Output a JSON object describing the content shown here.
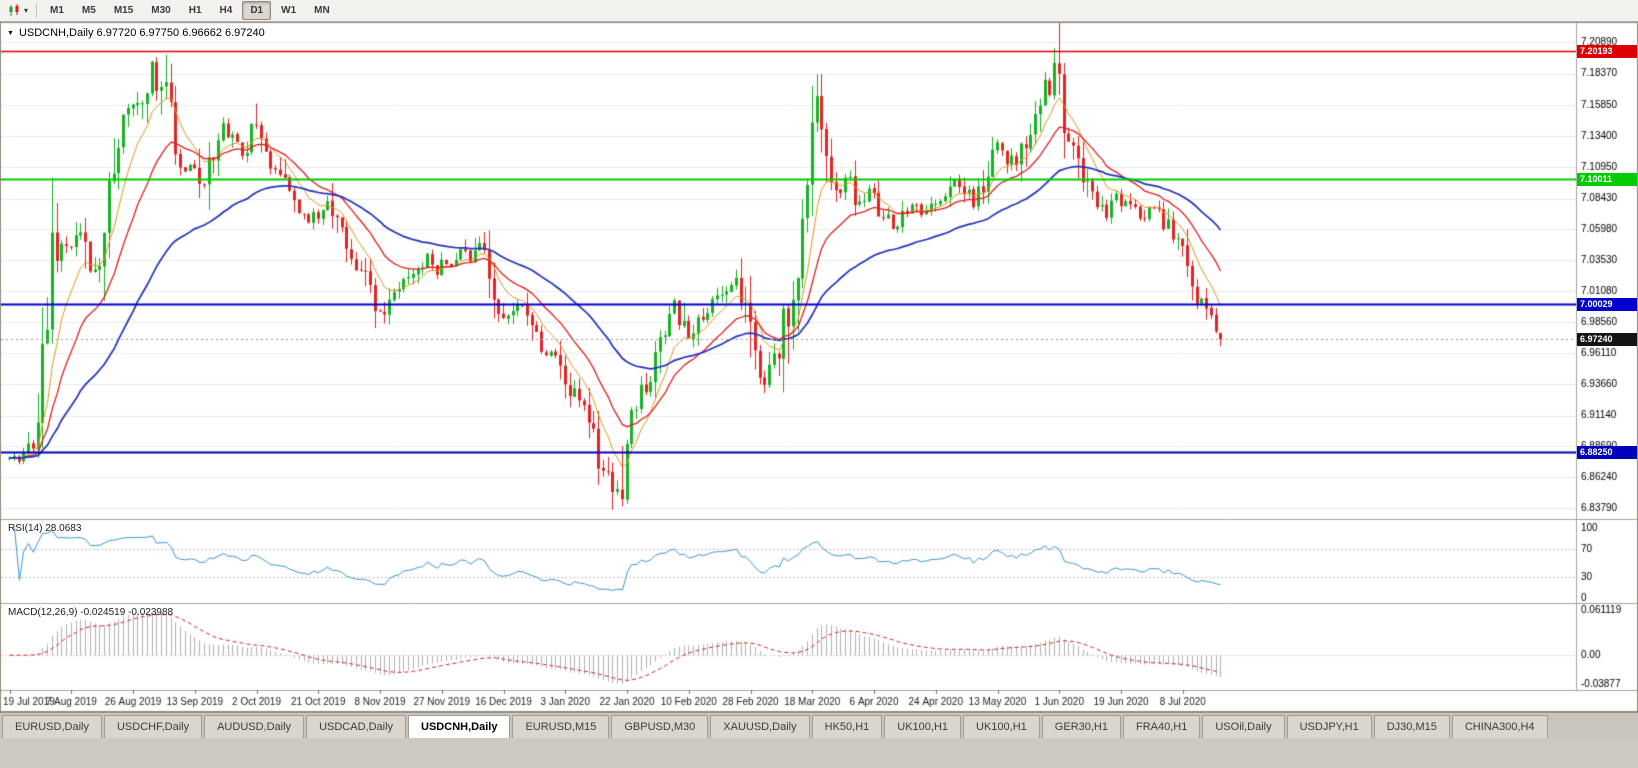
{
  "icons": {
    "collapse_arrow": "▼",
    "dropdown_caret": "▾"
  },
  "toolbar": {
    "timeframes": [
      "M1",
      "M5",
      "M15",
      "M30",
      "H1",
      "H4",
      "D1",
      "W1",
      "MN"
    ],
    "active_timeframe": "D1"
  },
  "chart_data": {
    "type": "candlestick",
    "symbol": "USDCNH",
    "period": "Daily",
    "title_text": "USDCNH,Daily 6.97720 6.97750 6.96662 6.97240",
    "ohlc": {
      "open": 6.9772,
      "high": 6.9775,
      "low": 6.96662,
      "close": 6.9724
    },
    "bars": 256,
    "bars_per_label": 13,
    "date_labels": [
      "19 Jul 2019",
      "7 Aug 2019",
      "26 Aug 2019",
      "13 Sep 2019",
      "2 Oct 2019",
      "21 Oct 2019",
      "8 Nov 2019",
      "27 Nov 2019",
      "16 Dec 2019",
      "3 Jan 2020",
      "22 Jan 2020",
      "10 Feb 2020",
      "28 Feb 2020",
      "18 Mar 2020",
      "6 Apr 2020",
      "24 Apr 2020",
      "13 May 2020",
      "1 Jun 2020",
      "19 Jun 2020",
      "8 Jul 2020"
    ],
    "price_axis": {
      "ticks": [
        "7.20890",
        "7.18370",
        "7.15850",
        "7.13400",
        "7.10950",
        "7.08430",
        "7.05980",
        "7.03530",
        "7.01080",
        "6.98560",
        "6.96110",
        "6.93660",
        "6.91140",
        "6.88690",
        "6.86240",
        "6.83790"
      ],
      "min": 6.8379,
      "max": 7.2089
    },
    "anchors": [
      [
        0,
        6.879
      ],
      [
        2,
        6.877
      ],
      [
        4,
        6.881
      ],
      [
        6,
        6.902
      ],
      [
        8,
        6.965
      ],
      [
        9,
        7.018
      ],
      [
        11,
        7.052
      ],
      [
        13,
        7.044
      ],
      [
        15,
        7.061
      ],
      [
        17,
        7.026
      ],
      [
        19,
        7.048
      ],
      [
        21,
        7.088
      ],
      [
        23,
        7.138
      ],
      [
        25,
        7.154
      ],
      [
        27,
        7.162
      ],
      [
        29,
        7.178
      ],
      [
        30,
        7.192
      ],
      [
        31,
        7.183
      ],
      [
        33,
        7.158
      ],
      [
        35,
        7.114
      ],
      [
        37,
        7.104
      ],
      [
        39,
        7.112
      ],
      [
        41,
        7.092
      ],
      [
        43,
        7.119
      ],
      [
        45,
        7.141
      ],
      [
        47,
        7.129
      ],
      [
        49,
        7.119
      ],
      [
        51,
        7.146
      ],
      [
        53,
        7.124
      ],
      [
        55,
        7.109
      ],
      [
        57,
        7.099
      ],
      [
        59,
        7.084
      ],
      [
        61,
        7.071
      ],
      [
        63,
        7.067
      ],
      [
        65,
        7.072
      ],
      [
        67,
        7.078
      ],
      [
        69,
        7.059
      ],
      [
        71,
        7.041
      ],
      [
        73,
        7.031
      ],
      [
        75,
        7.019
      ],
      [
        77,
        6.999
      ],
      [
        78,
        6.992
      ],
      [
        80,
        7.002
      ],
      [
        82,
        7.013
      ],
      [
        84,
        7.022
      ],
      [
        86,
        7.031
      ],
      [
        88,
        7.039
      ],
      [
        90,
        7.028
      ],
      [
        91,
        7.039
      ],
      [
        93,
        7.031
      ],
      [
        95,
        7.043
      ],
      [
        97,
        7.032
      ],
      [
        99,
        7.046
      ],
      [
        101,
        7.021
      ],
      [
        103,
        7.002
      ],
      [
        104,
        6.986
      ],
      [
        106,
        6.993
      ],
      [
        108,
        7.001
      ],
      [
        110,
        6.989
      ],
      [
        112,
        6.971
      ],
      [
        114,
        6.961
      ],
      [
        116,
        6.959
      ],
      [
        117,
        6.941
      ],
      [
        119,
        6.929
      ],
      [
        121,
        6.917
      ],
      [
        123,
        6.899
      ],
      [
        125,
        6.871
      ],
      [
        127,
        6.856
      ],
      [
        128,
        6.846
      ],
      [
        129,
        6.869
      ],
      [
        130,
        6.899
      ],
      [
        132,
        6.927
      ],
      [
        134,
        6.941
      ],
      [
        136,
        6.964
      ],
      [
        138,
        6.987
      ],
      [
        140,
        7.001
      ],
      [
        142,
        6.981
      ],
      [
        143,
        6.971
      ],
      [
        145,
        6.984
      ],
      [
        147,
        6.996
      ],
      [
        149,
        7.006
      ],
      [
        151,
        7.016
      ],
      [
        153,
        7.023
      ],
      [
        155,
        6.997
      ],
      [
        156,
        6.971
      ],
      [
        158,
        6.937
      ],
      [
        160,
        6.949
      ],
      [
        162,
        6.963
      ],
      [
        164,
        7.001
      ],
      [
        166,
        7.046
      ],
      [
        168,
        7.096
      ],
      [
        169,
        7.121
      ],
      [
        170,
        7.161
      ],
      [
        171,
        7.144
      ],
      [
        173,
        7.109
      ],
      [
        175,
        7.091
      ],
      [
        177,
        7.101
      ],
      [
        179,
        7.081
      ],
      [
        181,
        7.089
      ],
      [
        182,
        7.091
      ],
      [
        184,
        7.071
      ],
      [
        186,
        7.061
      ],
      [
        188,
        7.071
      ],
      [
        190,
        7.081
      ],
      [
        192,
        7.071
      ],
      [
        194,
        7.077
      ],
      [
        195,
        7.081
      ],
      [
        197,
        7.089
      ],
      [
        199,
        7.099
      ],
      [
        201,
        7.091
      ],
      [
        203,
        7.081
      ],
      [
        205,
        7.099
      ],
      [
        207,
        7.119
      ],
      [
        208,
        7.127
      ],
      [
        210,
        7.117
      ],
      [
        212,
        7.111
      ],
      [
        214,
        7.129
      ],
      [
        216,
        7.149
      ],
      [
        218,
        7.167
      ],
      [
        220,
        7.192
      ],
      [
        221,
        7.161
      ],
      [
        223,
        7.131
      ],
      [
        225,
        7.117
      ],
      [
        227,
        7.091
      ],
      [
        229,
        7.081
      ],
      [
        231,
        7.071
      ],
      [
        233,
        7.087
      ],
      [
        234,
        7.081
      ],
      [
        236,
        7.077
      ],
      [
        238,
        7.069
      ],
      [
        240,
        7.077
      ],
      [
        242,
        7.071
      ],
      [
        244,
        7.061
      ],
      [
        246,
        7.051
      ],
      [
        247,
        7.031
      ],
      [
        249,
        7.011
      ],
      [
        251,
        7.001
      ],
      [
        253,
        6.991
      ],
      [
        255,
        6.9724
      ]
    ],
    "hlines": [
      {
        "price": 7.20193,
        "color": "#dd0000",
        "label": "7.20193",
        "width": 1.5
      },
      {
        "price": 7.10011,
        "color": "#00cc00",
        "label": "7.10011",
        "width": 2
      },
      {
        "price": 7.00029,
        "color": "#0000cc",
        "label": "7.00029",
        "width": 2
      },
      {
        "price": 6.8825,
        "color": "#0000bb",
        "label": "6.88250",
        "width": 2
      }
    ],
    "current_price": {
      "value": 6.9724,
      "label": "6.97240",
      "box_color": "#151515"
    },
    "moving_averages": [
      {
        "period": 8,
        "color": "#dd9922",
        "width": 1
      },
      {
        "period": 18,
        "color": "#e02020",
        "width": 1.3
      },
      {
        "period": 45,
        "color": "#2233bb",
        "width": 1.7
      }
    ],
    "candle_colors": {
      "up": "#18b226",
      "down": "#e32424"
    },
    "indicators": {
      "rsi": {
        "display": "RSI(14) 28.0683",
        "period": 14,
        "value": 28.0683,
        "levels": [
          "100",
          "70",
          "30",
          "0"
        ],
        "line_color": "#3d96d2"
      },
      "macd": {
        "display": "MACD(12,26,9) -0.024519 -0.023988",
        "fast": 12,
        "slow": 26,
        "signal": 9,
        "macd_value": -0.024519,
        "signal_value": -0.023988,
        "scale": [
          "0.061119",
          "0.00",
          "-0.03877"
        ],
        "scale_max": 0.061119,
        "scale_min": -0.03877,
        "hist_color": "#b2b2b2",
        "signal_color": "#dd2222"
      }
    }
  },
  "tabs": {
    "active_index": 4,
    "items": [
      "EURUSD,Daily",
      "USDCHF,Daily",
      "AUDUSD,Daily",
      "USDCAD,Daily",
      "USDCNH,Daily",
      "EURUSD,M15",
      "GBPUSD,M30",
      "XAUUSD,Daily",
      "HK50,H1",
      "UK100,H1",
      "UK100,H1",
      "GER30,H1",
      "FRA40,H1",
      "USOil,Daily",
      "USDJPY,H1",
      "DJ30,M15",
      "CHINA300,H4"
    ]
  }
}
